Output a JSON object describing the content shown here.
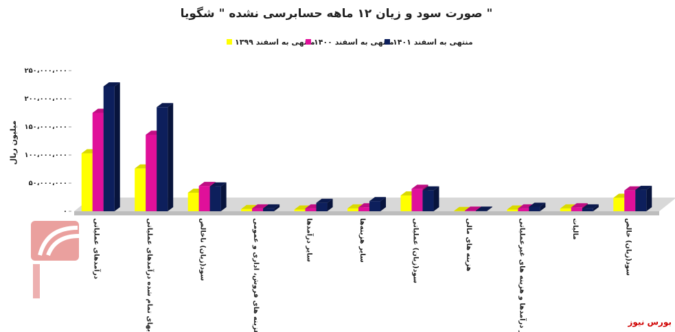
{
  "chart_data": {
    "type": "bar",
    "title": "صورت سود و زیان ۱۲ ماهه حسابرسی نشده \" شگویا \"",
    "y_label": "میلیون ریال",
    "source": "بورس نیوز",
    "categories": [
      "درآمدهای عملیاتی",
      "بهای تمام شده درآمدهای عملیاتی",
      "سود(زیان) ناخالص",
      "هزینه های فروش، اداری و عمومی",
      "سایر درآمدها",
      "سایر هزینه‌ها",
      "سود(زیان) عملیاتی",
      "هزینه های مالی",
      "سایر درآمدها و هزینه های غیرعملیاتی",
      "مالیات",
      "سود(زیان) خالص"
    ],
    "series": [
      {
        "name": "منتهی به اسفند ۱۳۹۹",
        "color": "#ffff00",
        "values": [
          103000000,
          76000000,
          33000000,
          4000000,
          3000000,
          5000000,
          28000000,
          500000,
          3000000,
          5000000,
          24000000
        ]
      },
      {
        "name": "منتهی به اسفند ۱۴۰۰",
        "color": "#e0109a",
        "values": [
          175000000,
          136000000,
          45000000,
          5000000,
          5000000,
          7000000,
          40000000,
          1000000,
          5000000,
          7000000,
          37000000
        ]
      },
      {
        "name": "منتهی به اسفند ۱۴۰۱",
        "color": "#0d1f5c",
        "values": [
          222000000,
          185000000,
          44000000,
          5000000,
          15000000,
          18000000,
          37000000,
          1000000,
          8000000,
          5000000,
          38000000
        ]
      }
    ],
    "ylim": [
      0,
      250000000
    ],
    "yticks": [
      {
        "value": 0,
        "label": "۰"
      },
      {
        "value": 50000000,
        "label": "۵۰،۰۰۰،۰۰۰"
      },
      {
        "value": 100000000,
        "label": "۱۰۰،۰۰۰،۰۰۰"
      },
      {
        "value": 150000000,
        "label": "۱۵۰،۰۰۰،۰۰۰"
      },
      {
        "value": 200000000,
        "label": "۲۰۰،۰۰۰،۰۰۰"
      },
      {
        "value": 250000000,
        "label": "۲۵۰،۰۰۰،۰۰۰"
      }
    ]
  }
}
